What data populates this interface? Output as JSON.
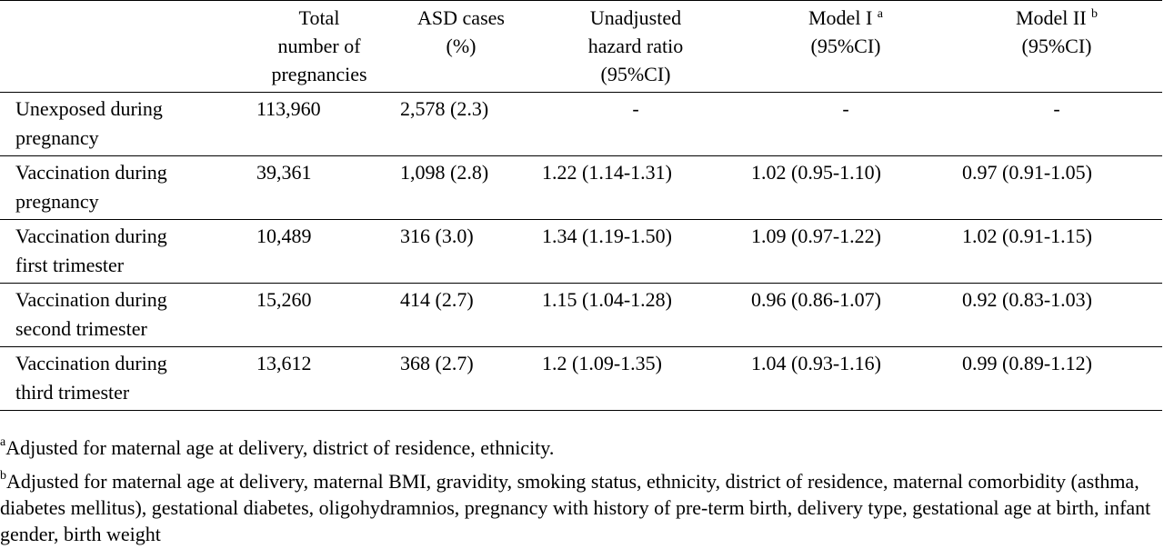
{
  "table": {
    "headers": [
      {
        "label": ""
      },
      {
        "label": "Total\nnumber of\npregnancies"
      },
      {
        "label": "ASD cases\n(%)"
      },
      {
        "label": "Unadjusted\nhazard ratio\n(95%CI)"
      },
      {
        "label": "Model I",
        "sup": "a",
        "line2": "(95%CI)"
      },
      {
        "label": "Model II",
        "sup": "b",
        "line2": "(95%CI)"
      }
    ],
    "rows": [
      {
        "label": "Unexposed during\npregnancy",
        "total": "113,960",
        "asd": "2,578 (2.3)",
        "unadjusted": "-",
        "model1": "-",
        "model2": "-"
      },
      {
        "label": "Vaccination during\npregnancy",
        "total": "39,361",
        "asd": "1,098 (2.8)",
        "unadjusted": "1.22 (1.14-1.31)",
        "model1": "1.02 (0.95-1.10)",
        "model2": "0.97 (0.91-1.05)"
      },
      {
        "label": "Vaccination during\nfirst trimester",
        "total": "10,489",
        "asd": "316 (3.0)",
        "unadjusted": "1.34 (1.19-1.50)",
        "model1": "1.09 (0.97-1.22)",
        "model2": "1.02 (0.91-1.15)"
      },
      {
        "label": "Vaccination during\nsecond trimester",
        "total": "15,260",
        "asd": "414 (2.7)",
        "unadjusted": "1.15 (1.04-1.28)",
        "model1": "0.96 (0.86-1.07)",
        "model2": "0.92 (0.83-1.03)"
      },
      {
        "label": "Vaccination during\nthird trimester",
        "total": "13,612",
        "asd": "368 (2.7)",
        "unadjusted": "1.2 (1.09-1.35)",
        "model1": "1.04 (0.93-1.16)",
        "model2": "0.99 (0.89-1.12)"
      }
    ]
  },
  "footnotes": [
    {
      "mark": "a",
      "text": "Adjusted for maternal age at delivery, district of residence, ethnicity."
    },
    {
      "mark": "b",
      "text": "Adjusted for maternal age at delivery, maternal BMI, gravidity, smoking status, ethnicity, district of residence, maternal comorbidity (asthma, diabetes mellitus), gestational diabetes, oligohydramnios, pregnancy with history of pre-term birth, delivery type, gestational age at birth, infant gender, birth weight"
    }
  ]
}
